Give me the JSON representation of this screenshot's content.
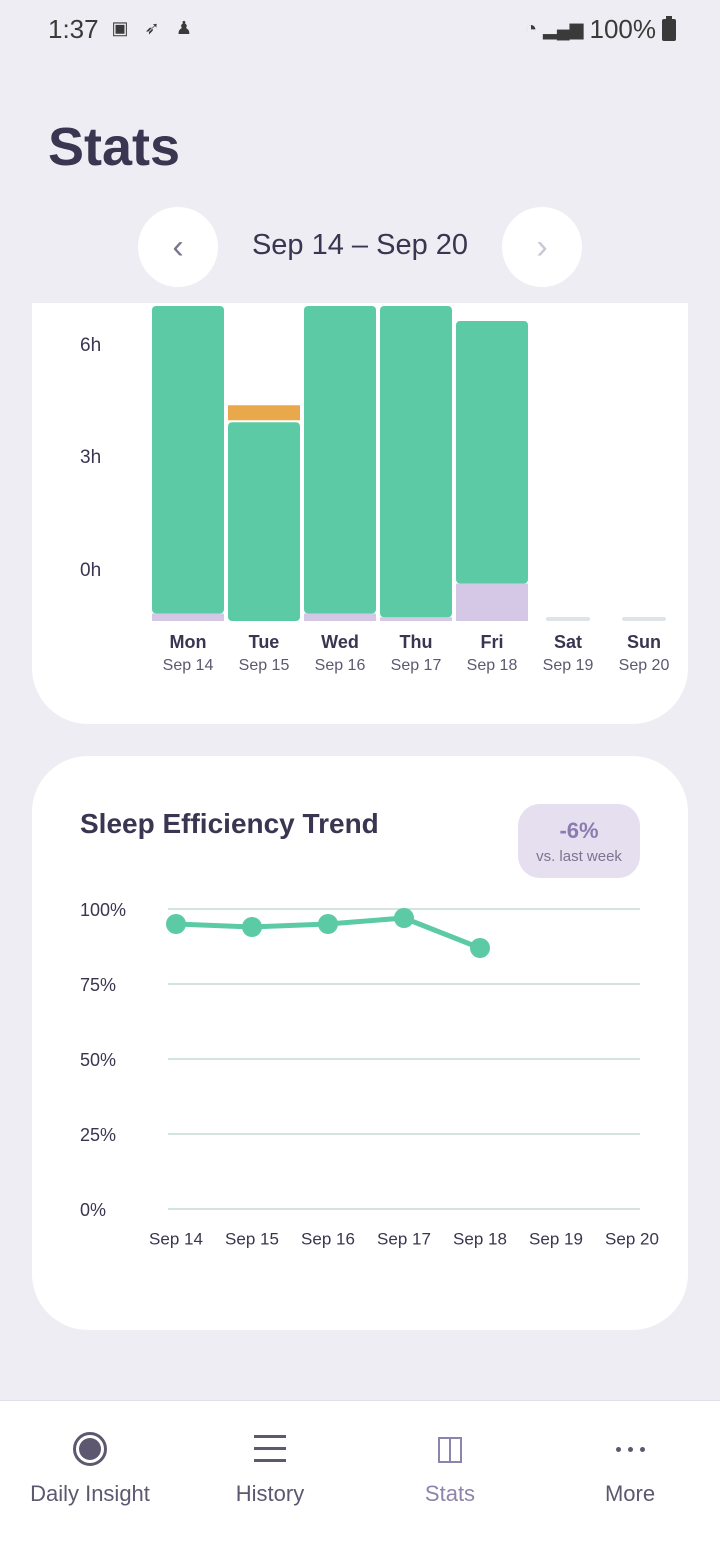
{
  "status_bar": {
    "time": "1:37",
    "battery": "100%",
    "icons": [
      "image-icon",
      "rocket-icon",
      "person-icon",
      "wifi-icon",
      "signal-icon",
      "battery-icon"
    ]
  },
  "header": {
    "title": "Stats"
  },
  "week_nav": {
    "label": "Sep 14 – Sep 20",
    "prev_glyph": "‹",
    "next_glyph": "›"
  },
  "sleep_chart": {
    "chart_data": {
      "type": "bar",
      "stacked": true,
      "y_tick_labels": [
        "6h",
        "3h",
        "0h"
      ],
      "categories": [
        {
          "day": "Mon",
          "date": "Sep 14"
        },
        {
          "day": "Tue",
          "date": "Sep 15"
        },
        {
          "day": "Wed",
          "date": "Sep 16"
        },
        {
          "day": "Thu",
          "date": "Sep 17"
        },
        {
          "day": "Fri",
          "date": "Sep 18"
        },
        {
          "day": "Sat",
          "date": "Sep 19"
        },
        {
          "day": "Sun",
          "date": "Sep 20"
        }
      ],
      "series_colors": {
        "asleep": "#5ccba5",
        "awake": "#d4c8e6",
        "extra": "#e9a94b"
      },
      "values_hours": [
        {
          "asleep": 8.2,
          "awake": 0.2,
          "extra": 0
        },
        {
          "asleep": 5.3,
          "awake": 0.0,
          "extra": 0.4
        },
        {
          "asleep": 8.2,
          "awake": 0.2,
          "extra": 0
        },
        {
          "asleep": 8.3,
          "awake": 0.1,
          "extra": 0
        },
        {
          "asleep": 7.0,
          "awake": 1.0,
          "extra": 0
        },
        {
          "asleep": 0,
          "awake": 0,
          "extra": 0
        },
        {
          "asleep": 0,
          "awake": 0,
          "extra": 0
        }
      ]
    }
  },
  "trend_card": {
    "title": "Sleep Efficiency Trend",
    "badge_value": "-6%",
    "badge_caption": "vs. last week",
    "chart_data": {
      "type": "line",
      "y_tick_labels": [
        "100%",
        "75%",
        "50%",
        "25%",
        "0%"
      ],
      "ylim": [
        0,
        100
      ],
      "x": [
        "Sep 14",
        "Sep 15",
        "Sep 16",
        "Sep 17",
        "Sep 18",
        "Sep 19",
        "Sep 20"
      ],
      "values": [
        95,
        94,
        95,
        97,
        87,
        null,
        null
      ],
      "line_color": "#5ccba5"
    }
  },
  "bottom_nav": {
    "items": [
      {
        "label": "Daily Insight",
        "active": false
      },
      {
        "label": "History",
        "active": false
      },
      {
        "label": "Stats",
        "active": true
      },
      {
        "label": "More",
        "active": false
      }
    ]
  }
}
